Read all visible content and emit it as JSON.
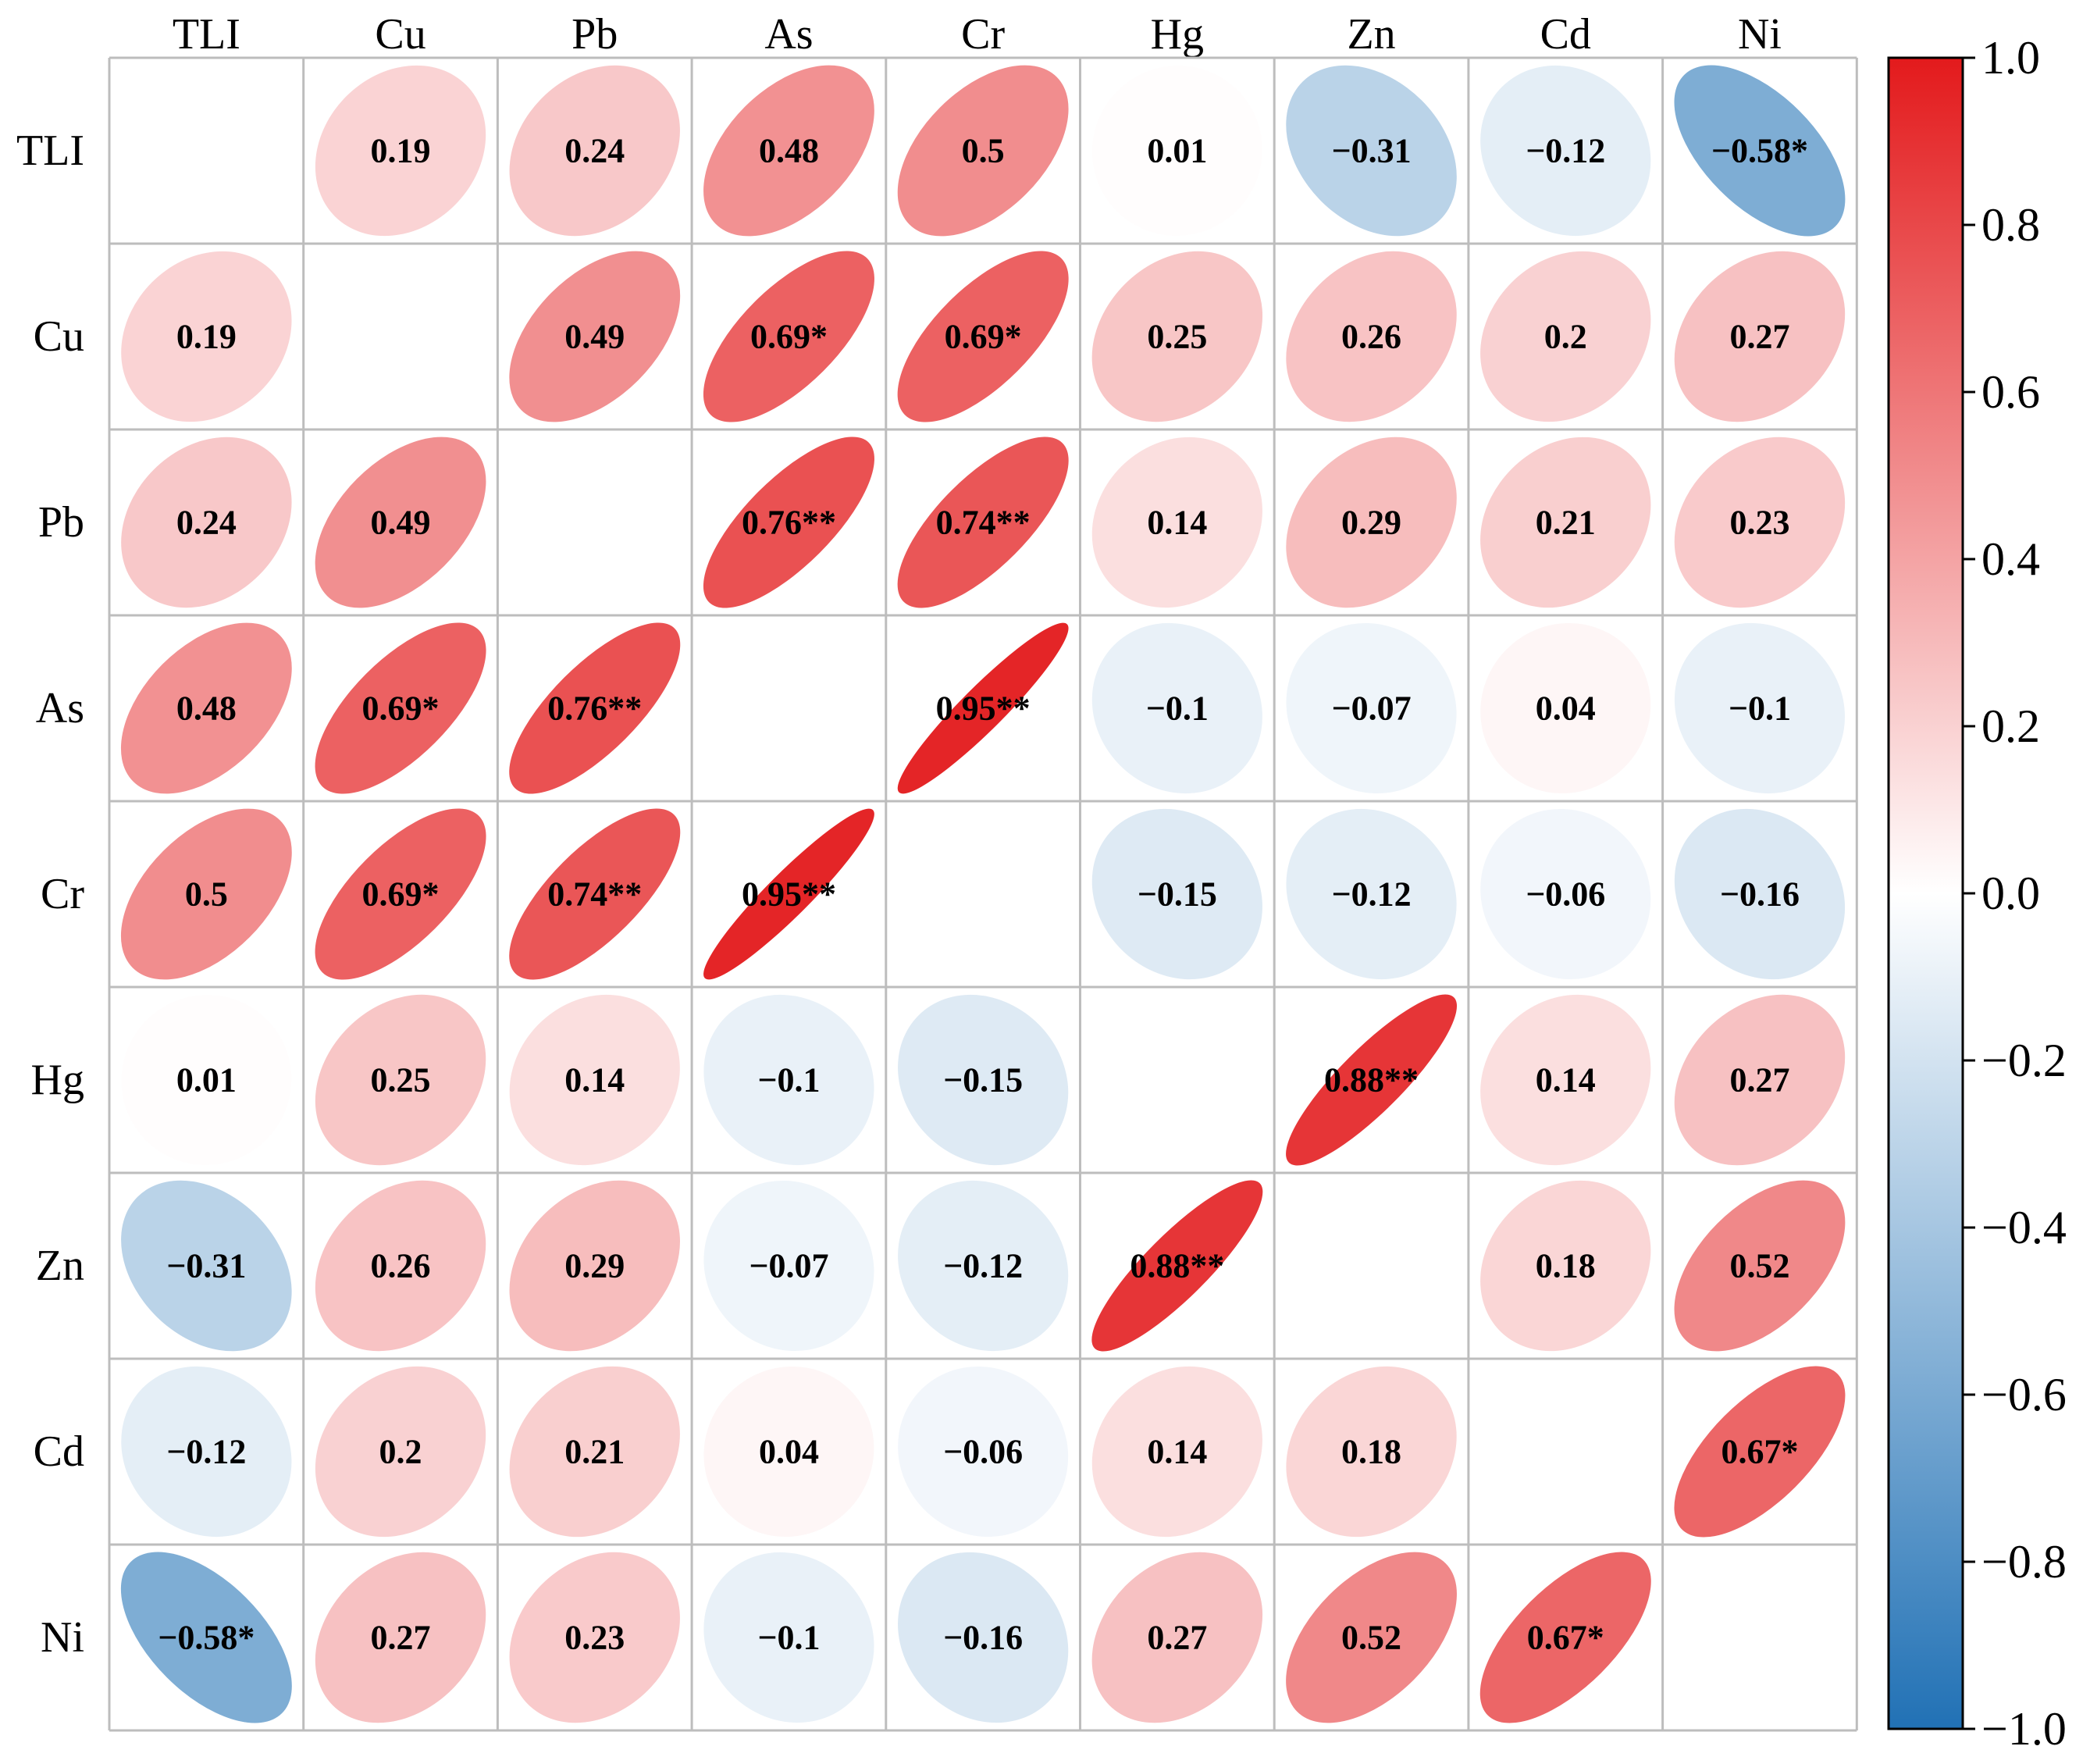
{
  "chart_data": {
    "type": "heatmap",
    "title": "",
    "xlabel": "",
    "ylabel": "",
    "labels": [
      "TLI",
      "Cu",
      "Pb",
      "As",
      "Cr",
      "Hg",
      "Zn",
      "Cd",
      "Ni"
    ],
    "values": [
      [
        null,
        0.19,
        0.24,
        0.48,
        0.5,
        0.01,
        -0.31,
        -0.12,
        -0.58
      ],
      [
        0.19,
        null,
        0.49,
        0.69,
        0.69,
        0.25,
        0.26,
        0.2,
        0.27
      ],
      [
        0.24,
        0.49,
        null,
        0.76,
        0.74,
        0.14,
        0.29,
        0.21,
        0.23
      ],
      [
        0.48,
        0.69,
        0.76,
        null,
        0.95,
        -0.1,
        -0.07,
        0.04,
        -0.1
      ],
      [
        0.5,
        0.69,
        0.74,
        0.95,
        null,
        -0.15,
        -0.12,
        -0.06,
        -0.16
      ],
      [
        0.01,
        0.25,
        0.14,
        -0.1,
        -0.15,
        null,
        0.88,
        0.14,
        0.27
      ],
      [
        -0.31,
        0.26,
        0.29,
        -0.07,
        -0.12,
        0.88,
        null,
        0.18,
        0.52
      ],
      [
        -0.12,
        0.2,
        0.21,
        0.04,
        -0.06,
        0.14,
        0.18,
        null,
        0.67
      ],
      [
        -0.58,
        0.27,
        0.23,
        -0.1,
        -0.16,
        0.27,
        0.52,
        0.67,
        null
      ]
    ],
    "cell_text": [
      [
        "",
        "0.19",
        "0.24",
        "0.48",
        "0.5",
        "0.01",
        "−0.31",
        "−0.12",
        "−0.58*"
      ],
      [
        "0.19",
        "",
        "0.49",
        "0.69*",
        "0.69*",
        "0.25",
        "0.26",
        "0.2",
        "0.27"
      ],
      [
        "0.24",
        "0.49",
        "",
        "0.76**",
        "0.74**",
        "0.14",
        "0.29",
        "0.21",
        "0.23"
      ],
      [
        "0.48",
        "0.69*",
        "0.76**",
        "",
        "0.95**",
        "−0.1",
        "−0.07",
        "0.04",
        "−0.1"
      ],
      [
        "0.5",
        "0.69*",
        "0.74**",
        "0.95**",
        "",
        "−0.15",
        "−0.12",
        "−0.06",
        "−0.16"
      ],
      [
        "0.01",
        "0.25",
        "0.14",
        "−0.1",
        "−0.15",
        "",
        "0.88**",
        "0.14",
        "0.27"
      ],
      [
        "−0.31",
        "0.26",
        "0.29",
        "−0.07",
        "−0.12",
        "0.88**",
        "",
        "0.18",
        "0.52"
      ],
      [
        "−0.12",
        "0.2",
        "0.21",
        "0.04",
        "−0.06",
        "0.14",
        "0.18",
        "",
        "0.67*"
      ],
      [
        "−0.58*",
        "0.27",
        "0.23",
        "−0.1",
        "−0.16",
        "0.27",
        "0.52",
        "0.67*",
        ""
      ]
    ],
    "colorbar": {
      "range": [
        -1.0,
        1.0
      ],
      "ticks": [
        "1.0",
        "0.8",
        "0.6",
        "0.4",
        "0.2",
        "0.0",
        "−0.2",
        "−0.4",
        "−0.6",
        "−0.8",
        "−1.0"
      ],
      "tick_values": [
        1.0,
        0.8,
        0.6,
        0.4,
        0.2,
        0.0,
        -0.2,
        -0.4,
        -0.6,
        -0.8,
        -1.0
      ],
      "colormap": [
        "#2171b5",
        "#ffffff",
        "#e31a1c"
      ]
    },
    "grid": true,
    "colors": {
      "negative": "#2171b5",
      "zero": "#ffffff",
      "positive": "#e31a1c",
      "grid": "#bdbdbd"
    }
  }
}
